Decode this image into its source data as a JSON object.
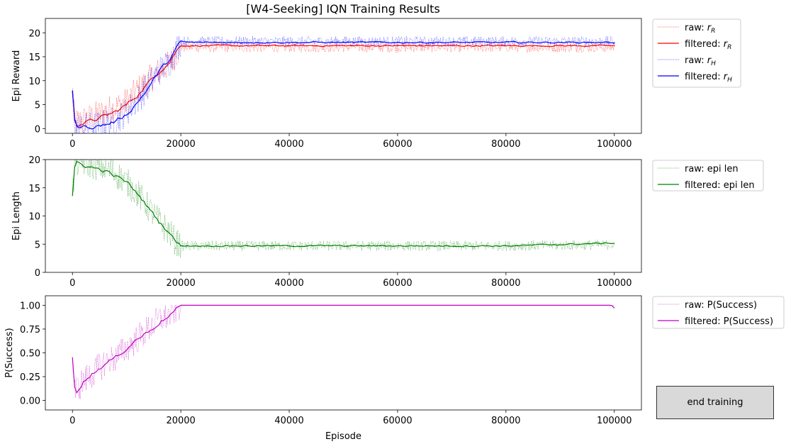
{
  "title": "[W4-Seeking] IQN Training Results",
  "button": {
    "end_training": "end training"
  },
  "chart_data": [
    {
      "type": "line",
      "ylabel": "Epi Reward",
      "xlabel": "",
      "xlim": [
        -5000,
        105000
      ],
      "ylim": [
        -1,
        23
      ],
      "xticks": [
        0,
        20000,
        40000,
        60000,
        80000,
        100000
      ],
      "yticks": [
        0,
        5,
        10,
        15,
        20
      ],
      "ytick_labels": [
        "0",
        "5",
        "10",
        "15",
        "20"
      ],
      "legend_position": "outside-right-top",
      "series": [
        {
          "name": "raw: rR",
          "legend_main": "raw: ",
          "legend_sym": "r",
          "legend_sub": "R",
          "style": "raw",
          "color": "#ff0000",
          "x": [
            0,
            500,
            2000,
            4000,
            6000,
            8000,
            10000,
            12000,
            14000,
            16000,
            18000,
            19000,
            20000,
            30000,
            40000,
            60000,
            80000,
            100000
          ],
          "y": [
            7.5,
            1.2,
            1.8,
            2.5,
            3.5,
            4.5,
            5.5,
            8.0,
            10.0,
            12.0,
            13.5,
            15.5,
            17.0,
            17.0,
            17.0,
            17.0,
            17.0,
            17.0
          ]
        },
        {
          "name": "filtered: rR",
          "legend_main": "filtered: ",
          "legend_sym": "r",
          "legend_sub": "R",
          "style": "filtered",
          "color": "#ff0000",
          "x": [
            0,
            500,
            2000,
            4000,
            6000,
            8000,
            10000,
            12000,
            14000,
            16000,
            18000,
            19000,
            20000,
            30000,
            40000,
            60000,
            80000,
            100000
          ],
          "y": [
            7.5,
            0.8,
            1.2,
            1.8,
            2.6,
            3.5,
            5.0,
            7.0,
            9.5,
            12.0,
            14.0,
            16.0,
            17.3,
            17.3,
            17.3,
            17.3,
            17.3,
            17.3
          ]
        },
        {
          "name": "raw: rH",
          "legend_main": "raw: ",
          "legend_sym": "r",
          "legend_sub": "H",
          "style": "raw",
          "color": "#0000ff",
          "x": [
            0,
            500,
            2000,
            4000,
            6000,
            8000,
            10000,
            12000,
            14000,
            16000,
            18000,
            19000,
            20000,
            30000,
            40000,
            60000,
            80000,
            100000
          ],
          "y": [
            8.0,
            0.3,
            0.3,
            0.5,
            1.0,
            1.8,
            3.5,
            6.0,
            9.0,
            12.0,
            14.0,
            16.0,
            18.2,
            18.2,
            18.2,
            18.2,
            18.2,
            18.2
          ]
        },
        {
          "name": "filtered: rH",
          "legend_main": "filtered: ",
          "legend_sym": "r",
          "legend_sub": "H",
          "style": "filtered",
          "color": "#0000ff",
          "x": [
            0,
            500,
            2000,
            4000,
            6000,
            8000,
            10000,
            12000,
            14000,
            16000,
            18000,
            19000,
            20000,
            30000,
            40000,
            60000,
            80000,
            100000
          ],
          "y": [
            8.0,
            0.2,
            0.3,
            0.4,
            0.8,
            1.5,
            3.0,
            5.5,
            8.5,
            12.0,
            14.5,
            16.5,
            18.0,
            18.0,
            18.0,
            18.0,
            18.0,
            18.0
          ]
        }
      ]
    },
    {
      "type": "line",
      "ylabel": "Epi Length",
      "xlabel": "",
      "xlim": [
        -5000,
        105000
      ],
      "ylim": [
        0,
        20
      ],
      "xticks": [
        0,
        20000,
        40000,
        60000,
        80000,
        100000
      ],
      "yticks": [
        0,
        5,
        10,
        15,
        20
      ],
      "ytick_labels": [
        "0",
        "5",
        "10",
        "15",
        "20"
      ],
      "legend_position": "outside-right-top",
      "series": [
        {
          "name": "raw: epi len",
          "legend_main": "raw: epi len",
          "style": "raw",
          "color": "#008000",
          "x": [
            0,
            500,
            2000,
            4000,
            6000,
            8000,
            10000,
            12000,
            14000,
            16000,
            18000,
            19000,
            20000,
            30000,
            40000,
            60000,
            80000,
            100000
          ],
          "y": [
            13.5,
            19.5,
            19.5,
            19.0,
            18.5,
            17.5,
            16.0,
            14.0,
            11.5,
            9.0,
            7.0,
            5.5,
            4.7,
            4.7,
            4.7,
            4.7,
            4.7,
            4.9
          ]
        },
        {
          "name": "filtered: epi len",
          "legend_main": "filtered: epi len",
          "style": "filtered",
          "color": "#008000",
          "x": [
            0,
            500,
            2000,
            4000,
            6000,
            8000,
            10000,
            12000,
            14000,
            16000,
            18000,
            19000,
            20000,
            30000,
            40000,
            60000,
            80000,
            100000
          ],
          "y": [
            13.3,
            19.5,
            19.0,
            18.5,
            18.0,
            17.0,
            16.0,
            14.0,
            11.5,
            9.0,
            7.0,
            5.5,
            4.7,
            4.7,
            4.7,
            4.7,
            4.7,
            5.2
          ]
        }
      ]
    },
    {
      "type": "line",
      "ylabel": "P(Success)",
      "xlabel": "Episode",
      "xlim": [
        -5000,
        105000
      ],
      "ylim": [
        -0.1,
        1.1
      ],
      "xticks": [
        0,
        20000,
        40000,
        60000,
        80000,
        100000
      ],
      "yticks": [
        0,
        0.25,
        0.5,
        0.75,
        1.0
      ],
      "ytick_labels": [
        "0.00",
        "0.25",
        "0.50",
        "0.75",
        "1.00"
      ],
      "legend_position": "outside-right-top",
      "series": [
        {
          "name": "raw: P(Success)",
          "legend_main": "raw: P(Success)",
          "style": "raw",
          "color": "#bf00bf",
          "x": [
            0,
            500,
            2000,
            4000,
            6000,
            8000,
            10000,
            12000,
            14000,
            16000,
            18000,
            19000,
            20000,
            30000,
            40000,
            60000,
            80000,
            100000
          ],
          "y": [
            0.45,
            0.1,
            0.2,
            0.3,
            0.4,
            0.45,
            0.55,
            0.65,
            0.75,
            0.85,
            0.9,
            0.95,
            1.0,
            1.0,
            1.0,
            1.0,
            1.0,
            1.0
          ]
        },
        {
          "name": "filtered: P(Success)",
          "legend_main": "filtered: P(Success)",
          "style": "filtered",
          "color": "#bf00bf",
          "x": [
            0,
            500,
            2000,
            4000,
            6000,
            8000,
            10000,
            12000,
            14000,
            16000,
            18000,
            19000,
            20000,
            30000,
            40000,
            60000,
            80000,
            99500,
            100000
          ],
          "y": [
            0.46,
            0.08,
            0.2,
            0.3,
            0.38,
            0.45,
            0.55,
            0.65,
            0.72,
            0.82,
            0.9,
            0.95,
            1.0,
            1.0,
            1.0,
            1.0,
            1.0,
            1.0,
            0.97
          ]
        }
      ]
    }
  ]
}
